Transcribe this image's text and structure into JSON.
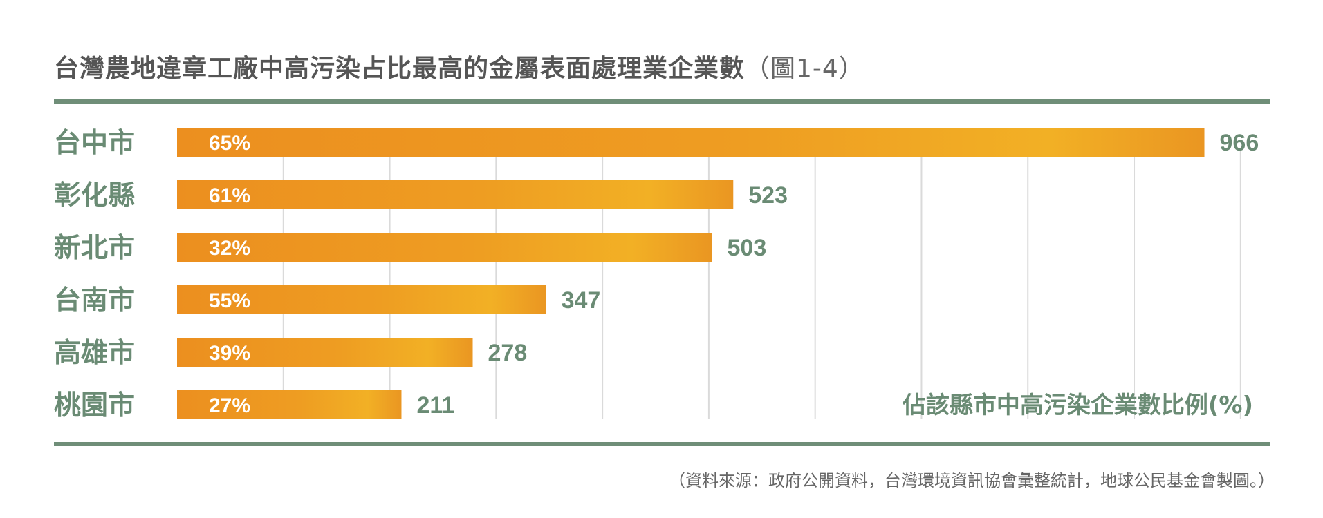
{
  "chart_data": {
    "type": "bar",
    "orientation": "horizontal",
    "title": "台灣農地違章工廠中高污染占比最高的金屬表面處理業企業數",
    "title_suffix": "（圖1-4）",
    "categories": [
      "台中市",
      "彰化縣",
      "新北市",
      "台南市",
      "高雄市",
      "桃園市"
    ],
    "values": [
      966,
      523,
      503,
      347,
      278,
      211
    ],
    "percent_labels": [
      "65%",
      "61%",
      "32%",
      "55%",
      "39%",
      "27%"
    ],
    "percent_legend": "佔該縣市中高污染企業數比例(%)",
    "xlim": [
      0,
      1000
    ],
    "grid": true,
    "gridlines_x": [
      100,
      200,
      300,
      400,
      500,
      600,
      700,
      800,
      900,
      1000
    ],
    "colors": {
      "bar": "#eb9422",
      "bar_highlight": "#f2b126",
      "category_text": "#6a8b74",
      "value_text": "#6a8b74",
      "percent_text": "#ffffff",
      "rule": "#6f8e78",
      "grid": "#dadada"
    }
  },
  "source": "（資料來源：政府公開資料，台灣環境資訊協會彙整統計，地球公民基金會製圖。）"
}
